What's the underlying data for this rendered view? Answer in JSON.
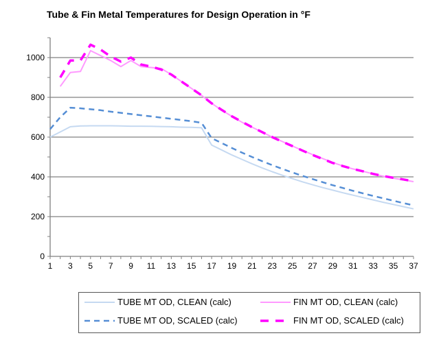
{
  "chart_data": {
    "type": "line",
    "title": "Tube & Fin Metal Temperatures for Design Operation in °F",
    "xlabel": "",
    "ylabel": "",
    "x": [
      1,
      2,
      3,
      4,
      5,
      6,
      7,
      8,
      9,
      10,
      11,
      12,
      13,
      14,
      15,
      16,
      17,
      18,
      19,
      20,
      21,
      22,
      23,
      24,
      25,
      26,
      27,
      28,
      29,
      30,
      31,
      32,
      33,
      34,
      35,
      36,
      37
    ],
    "xticks": [
      1,
      3,
      5,
      7,
      9,
      11,
      13,
      15,
      17,
      19,
      21,
      23,
      25,
      27,
      29,
      31,
      33,
      35,
      37
    ],
    "xlim": [
      1,
      37
    ],
    "ylim": [
      0,
      1100
    ],
    "yticks": [
      0,
      200,
      400,
      600,
      800,
      1000
    ],
    "grid": "horizontal",
    "legend": "bottom",
    "series": [
      {
        "name": "TUBE MT OD, CLEAN (calc)",
        "color": "#c5d9f1",
        "dash": false,
        "values": [
          600,
          626,
          652,
          656,
          657,
          657,
          657,
          656,
          655,
          655,
          654,
          653,
          652,
          650,
          649,
          647,
          560,
          535,
          510,
          488,
          466,
          445,
          426,
          408,
          391,
          375,
          360,
          346,
          333,
          320,
          308,
          296,
          284,
          272,
          261,
          250,
          239
        ]
      },
      {
        "name": "FIN MT OD, CLEAN (calc)",
        "color": "#ff99ff",
        "dash": false,
        "values": [
          null,
          855,
          925,
          930,
          1035,
          1010,
          985,
          955,
          985,
          955,
          950,
          945,
          915,
          880,
          845,
          810,
          770,
          735,
          705,
          675,
          650,
          625,
          600,
          578,
          555,
          533,
          512,
          492,
          472,
          455,
          440,
          428,
          415,
          403,
          393,
          385,
          376
        ]
      },
      {
        "name": "TUBE MT OD, SCALED (calc)",
        "color": "#558ed5",
        "dash": true,
        "values": [
          640,
          700,
          748,
          745,
          740,
          735,
          728,
          722,
          716,
          710,
          704,
          698,
          692,
          686,
          680,
          672,
          595,
          570,
          545,
          522,
          500,
          479,
          459,
          440,
          422,
          405,
          389,
          373,
          358,
          344,
          330,
          317,
          304,
          292,
          280,
          268,
          257
        ]
      },
      {
        "name": "FIN MT OD, SCALED (calc)",
        "color": "#ff00ff",
        "dash": true,
        "values": [
          null,
          900,
          985,
          985,
          1065,
          1040,
          1005,
          980,
          1000,
          965,
          955,
          940,
          915,
          880,
          845,
          810,
          770,
          737,
          705,
          677,
          650,
          625,
          600,
          577,
          555,
          532,
          510,
          490,
          470,
          454,
          440,
          428,
          415,
          404,
          395,
          387,
          378
        ]
      }
    ]
  }
}
